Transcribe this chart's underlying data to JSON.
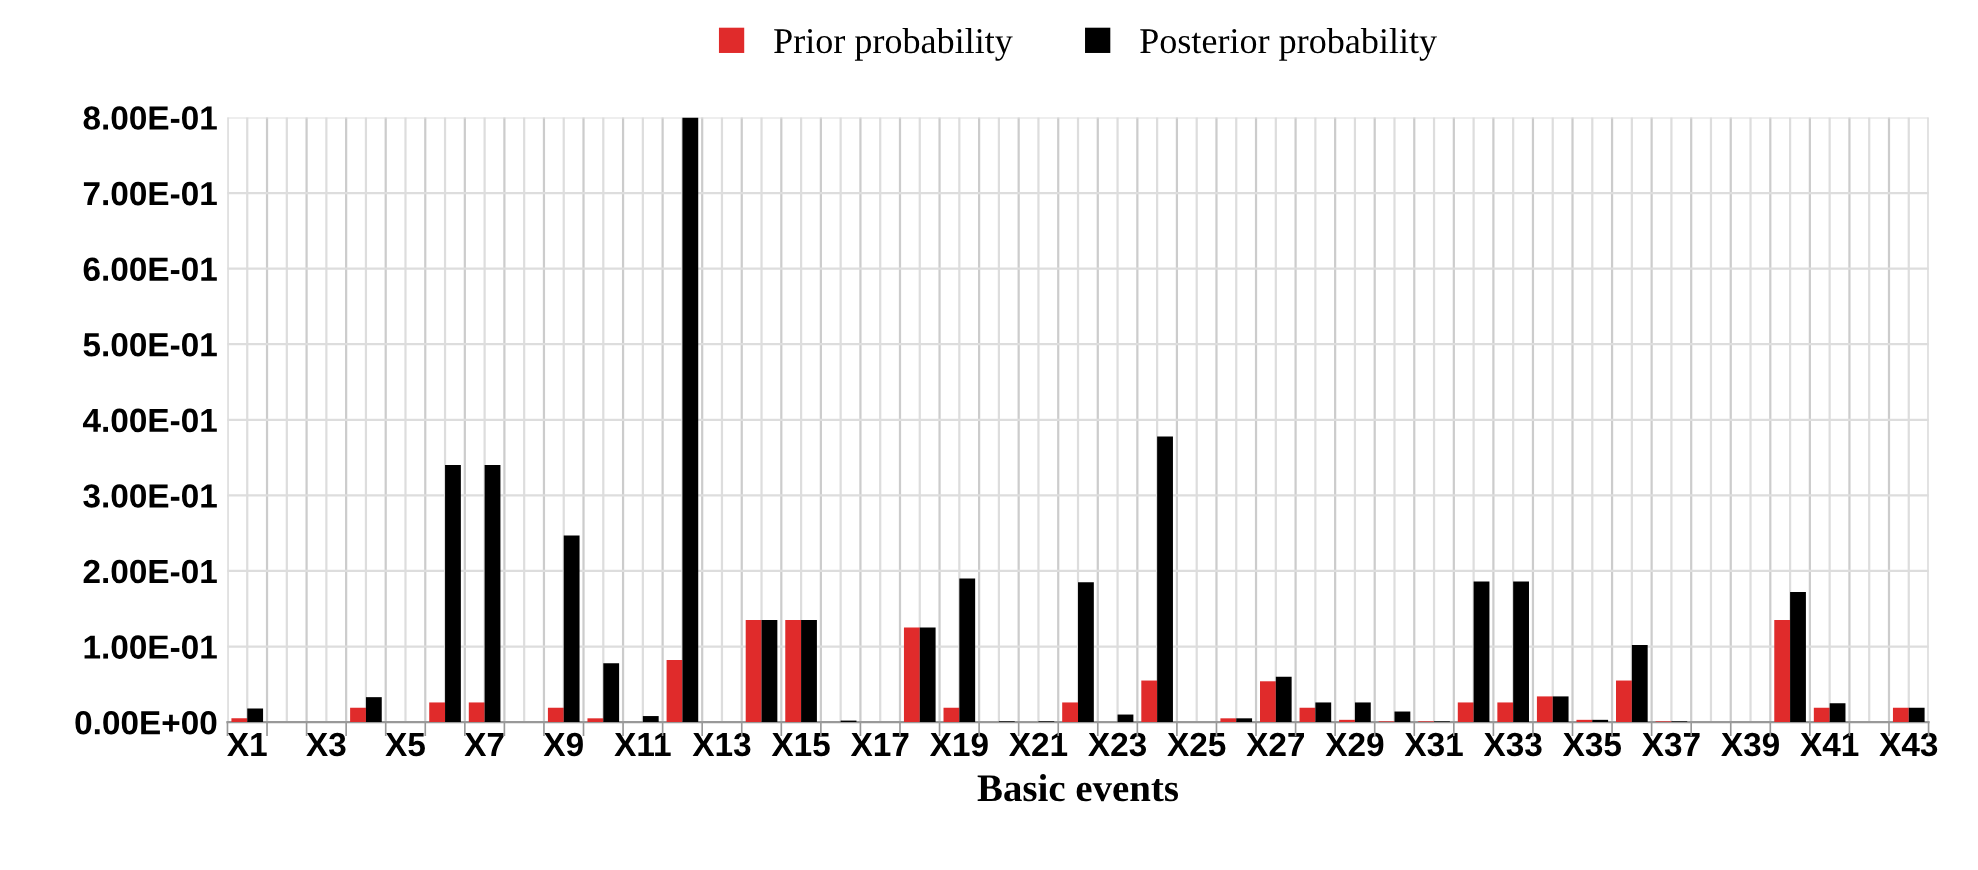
{
  "chart_data": {
    "type": "bar",
    "xlabel": "Basic events",
    "categories": [
      "X1",
      null,
      "X3",
      null,
      "X5",
      null,
      "X7",
      null,
      "X9",
      null,
      "X11",
      null,
      "X13",
      null,
      "X15",
      null,
      "X17",
      null,
      "X19",
      null,
      "X21",
      null,
      "X23",
      null,
      "X25",
      null,
      "X27",
      null,
      "X29",
      null,
      "X31",
      null,
      "X33",
      null,
      "X35",
      null,
      "X37",
      null,
      "X39",
      null,
      "X41",
      null,
      "X43"
    ],
    "series": [
      {
        "name": "Prior probability",
        "color": "#e02b2b",
        "values": [
          0.005,
          0,
          0,
          0.019,
          0,
          0.026,
          0.026,
          0,
          0.019,
          0.005,
          0,
          0.082,
          0,
          0.135,
          0.135,
          0,
          0,
          0.125,
          0.019,
          0,
          0,
          0.026,
          0,
          0.055,
          0,
          0.005,
          0.054,
          0.019,
          0.003,
          0.001,
          0.001,
          0.026,
          0.026,
          0.034,
          0.003,
          0.055,
          0.001,
          0,
          0,
          0.135,
          0.019,
          0,
          0.019
        ]
      },
      {
        "name": "Posterior probability",
        "color": "#000000",
        "values": [
          0.018,
          0,
          0,
          0.033,
          0,
          0.34,
          0.34,
          0,
          0.247,
          0.078,
          0.008,
          0.8,
          0,
          0.135,
          0.135,
          0.002,
          0,
          0.125,
          0.19,
          0.001,
          0.001,
          0.185,
          0.01,
          0.378,
          0,
          0.005,
          0.06,
          0.026,
          0.026,
          0.014,
          0.001,
          0.186,
          0.186,
          0.034,
          0.003,
          0.102,
          0.001,
          0,
          0,
          0.172,
          0.025,
          0,
          0.019
        ]
      }
    ],
    "ylim": [
      0,
      0.8
    ],
    "yticks": [
      {
        "value": 0,
        "label": "0.00E+00"
      },
      {
        "value": 0.1,
        "label": "1.00E-01"
      },
      {
        "value": 0.2,
        "label": "2.00E-01"
      },
      {
        "value": 0.3,
        "label": "3.00E-01"
      },
      {
        "value": 0.4,
        "label": "4.00E-01"
      },
      {
        "value": 0.5,
        "label": "5.00E-01"
      },
      {
        "value": 0.6,
        "label": "6.00E-01"
      },
      {
        "value": 0.7,
        "label": "7.00E-01"
      },
      {
        "value": 0.8,
        "label": "8.00E-01"
      }
    ],
    "grid": true,
    "legend": "top"
  }
}
